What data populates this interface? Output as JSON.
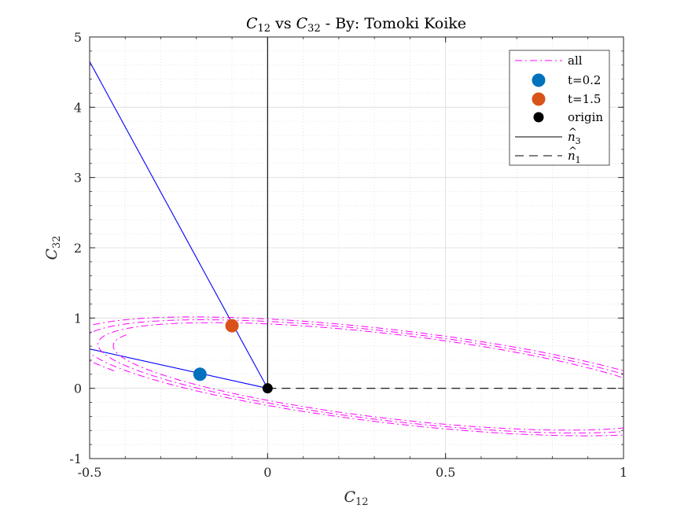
{
  "chart_data": {
    "type": "line",
    "title": "C12 vs C32 - By: Tomoki Koike",
    "title_parts": {
      "c1_base": "C",
      "c1_sub": "12",
      "mid": " vs ",
      "c2_base": "C",
      "c2_sub": "32",
      "suffix": " - By:  Tomoki Koike"
    },
    "xlabel": {
      "base": "C",
      "sub": "12"
    },
    "ylabel": {
      "base": "C",
      "sub": "32"
    },
    "xlim": [
      -0.5,
      1
    ],
    "ylim": [
      -1,
      5
    ],
    "xticks": [
      -0.5,
      0,
      0.5,
      1
    ],
    "xtick_labels": [
      "-0.5",
      "0",
      "0.5",
      "1"
    ],
    "yticks": [
      -1,
      0,
      1,
      2,
      3,
      4,
      5
    ],
    "ytick_labels": [
      "-1",
      "0",
      "1",
      "2",
      "3",
      "4",
      "5"
    ],
    "grid": true,
    "minor_grid": true,
    "legend_position": "top-right",
    "legend": [
      {
        "label": "all",
        "style": "dashdot",
        "color": "#ff00ff"
      },
      {
        "label": "t=0.2",
        "style": "marker",
        "color": "#0072bd"
      },
      {
        "label": "t=1.5",
        "style": "marker",
        "color": "#d95319"
      },
      {
        "label": "origin",
        "style": "marker",
        "color": "#000000"
      },
      {
        "label": "n3",
        "style": "solid",
        "color": "#000000",
        "hat": true,
        "base": "n",
        "sub": "3"
      },
      {
        "label": "n1",
        "style": "dashed",
        "color": "#000000",
        "hat": true,
        "base": "n",
        "sub": "1"
      }
    ],
    "series": [
      {
        "name": "all",
        "kind": "ellipse",
        "color": "#ff00ff",
        "center": [
          0.35,
          0.16
        ],
        "ry": 0.83,
        "rx": 0.56,
        "tilt": -0.38,
        "theta0": 2.9,
        "theta1": 22.6,
        "growth": 0.055
      },
      {
        "name": "t=0.2",
        "kind": "point",
        "color": "#0072bd",
        "x": -0.19,
        "y": 0.2
      },
      {
        "name": "t=1.5",
        "kind": "point",
        "color": "#d95319",
        "x": -0.1,
        "y": 0.89
      },
      {
        "name": "origin",
        "kind": "point",
        "color": "#000000",
        "x": 0,
        "y": 0
      },
      {
        "name": "blue-line-1",
        "kind": "line",
        "color": "#0000ff",
        "points": [
          [
            0,
            0
          ],
          [
            -0.5,
            4.65
          ]
        ]
      },
      {
        "name": "blue-line-2",
        "kind": "line",
        "color": "#0000ff",
        "points": [
          [
            0,
            0
          ],
          [
            -0.5,
            0.56
          ]
        ]
      },
      {
        "name": "n3",
        "kind": "line",
        "style": "solid",
        "color": "#000000",
        "points": [
          [
            0,
            0
          ],
          [
            0,
            5
          ]
        ]
      },
      {
        "name": "n1",
        "kind": "line",
        "style": "dashed",
        "color": "#000000",
        "points": [
          [
            0,
            0
          ],
          [
            1,
            0
          ]
        ]
      }
    ]
  }
}
